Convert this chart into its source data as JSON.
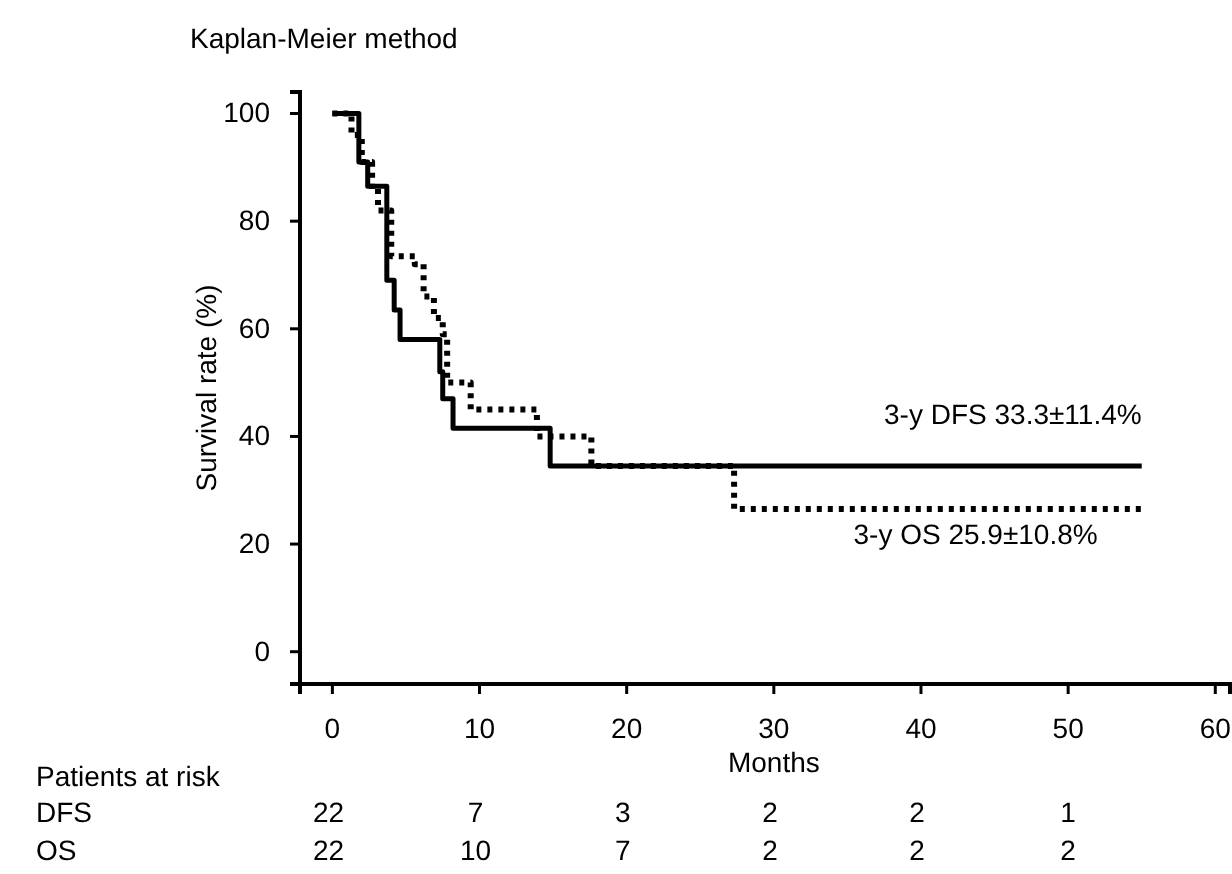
{
  "chart_data": {
    "type": "step",
    "title": "Kaplan-Meier method",
    "xlabel": "Months",
    "ylabel": "Survival rate (%)",
    "xlim": [
      -2.2,
      61
    ],
    "xticks": [
      0,
      10,
      20,
      30,
      40,
      50,
      60
    ],
    "ylim": [
      -6,
      104
    ],
    "yticks": [
      0,
      20,
      40,
      60,
      80,
      100
    ],
    "grid": false,
    "series": [
      {
        "color": "#000000",
        "line_style": "solid",
        "x": [
          0,
          1.8,
          2.4,
          3.7,
          4.2,
          4.6,
          7.3,
          7.5,
          8.2,
          14.8,
          55
        ],
        "values": [
          100,
          91,
          86.5,
          69,
          63.5,
          58,
          52,
          47,
          41.5,
          34.5,
          34.5
        ]
      },
      {
        "color": "#000000",
        "line_style": "dotted",
        "x": [
          0,
          1.3,
          2,
          2.7,
          3.1,
          4,
          5.6,
          6.2,
          6.9,
          7.5,
          7.8,
          9.4,
          13.9,
          17.6,
          27.3,
          55
        ],
        "values": [
          100,
          96,
          91,
          86,
          82,
          73.5,
          72,
          66,
          62,
          59,
          50,
          45,
          40,
          34.5,
          26.5,
          26.5
        ]
      }
    ],
    "annotations": [
      "3-y DFS 33.3±11.4%",
      "3-y OS 25.9±10.8%",
      "Patients at risk",
      "DFS",
      "22 7 3 2 2 1",
      "OS",
      "22 10 7 2 2 2"
    ]
  }
}
